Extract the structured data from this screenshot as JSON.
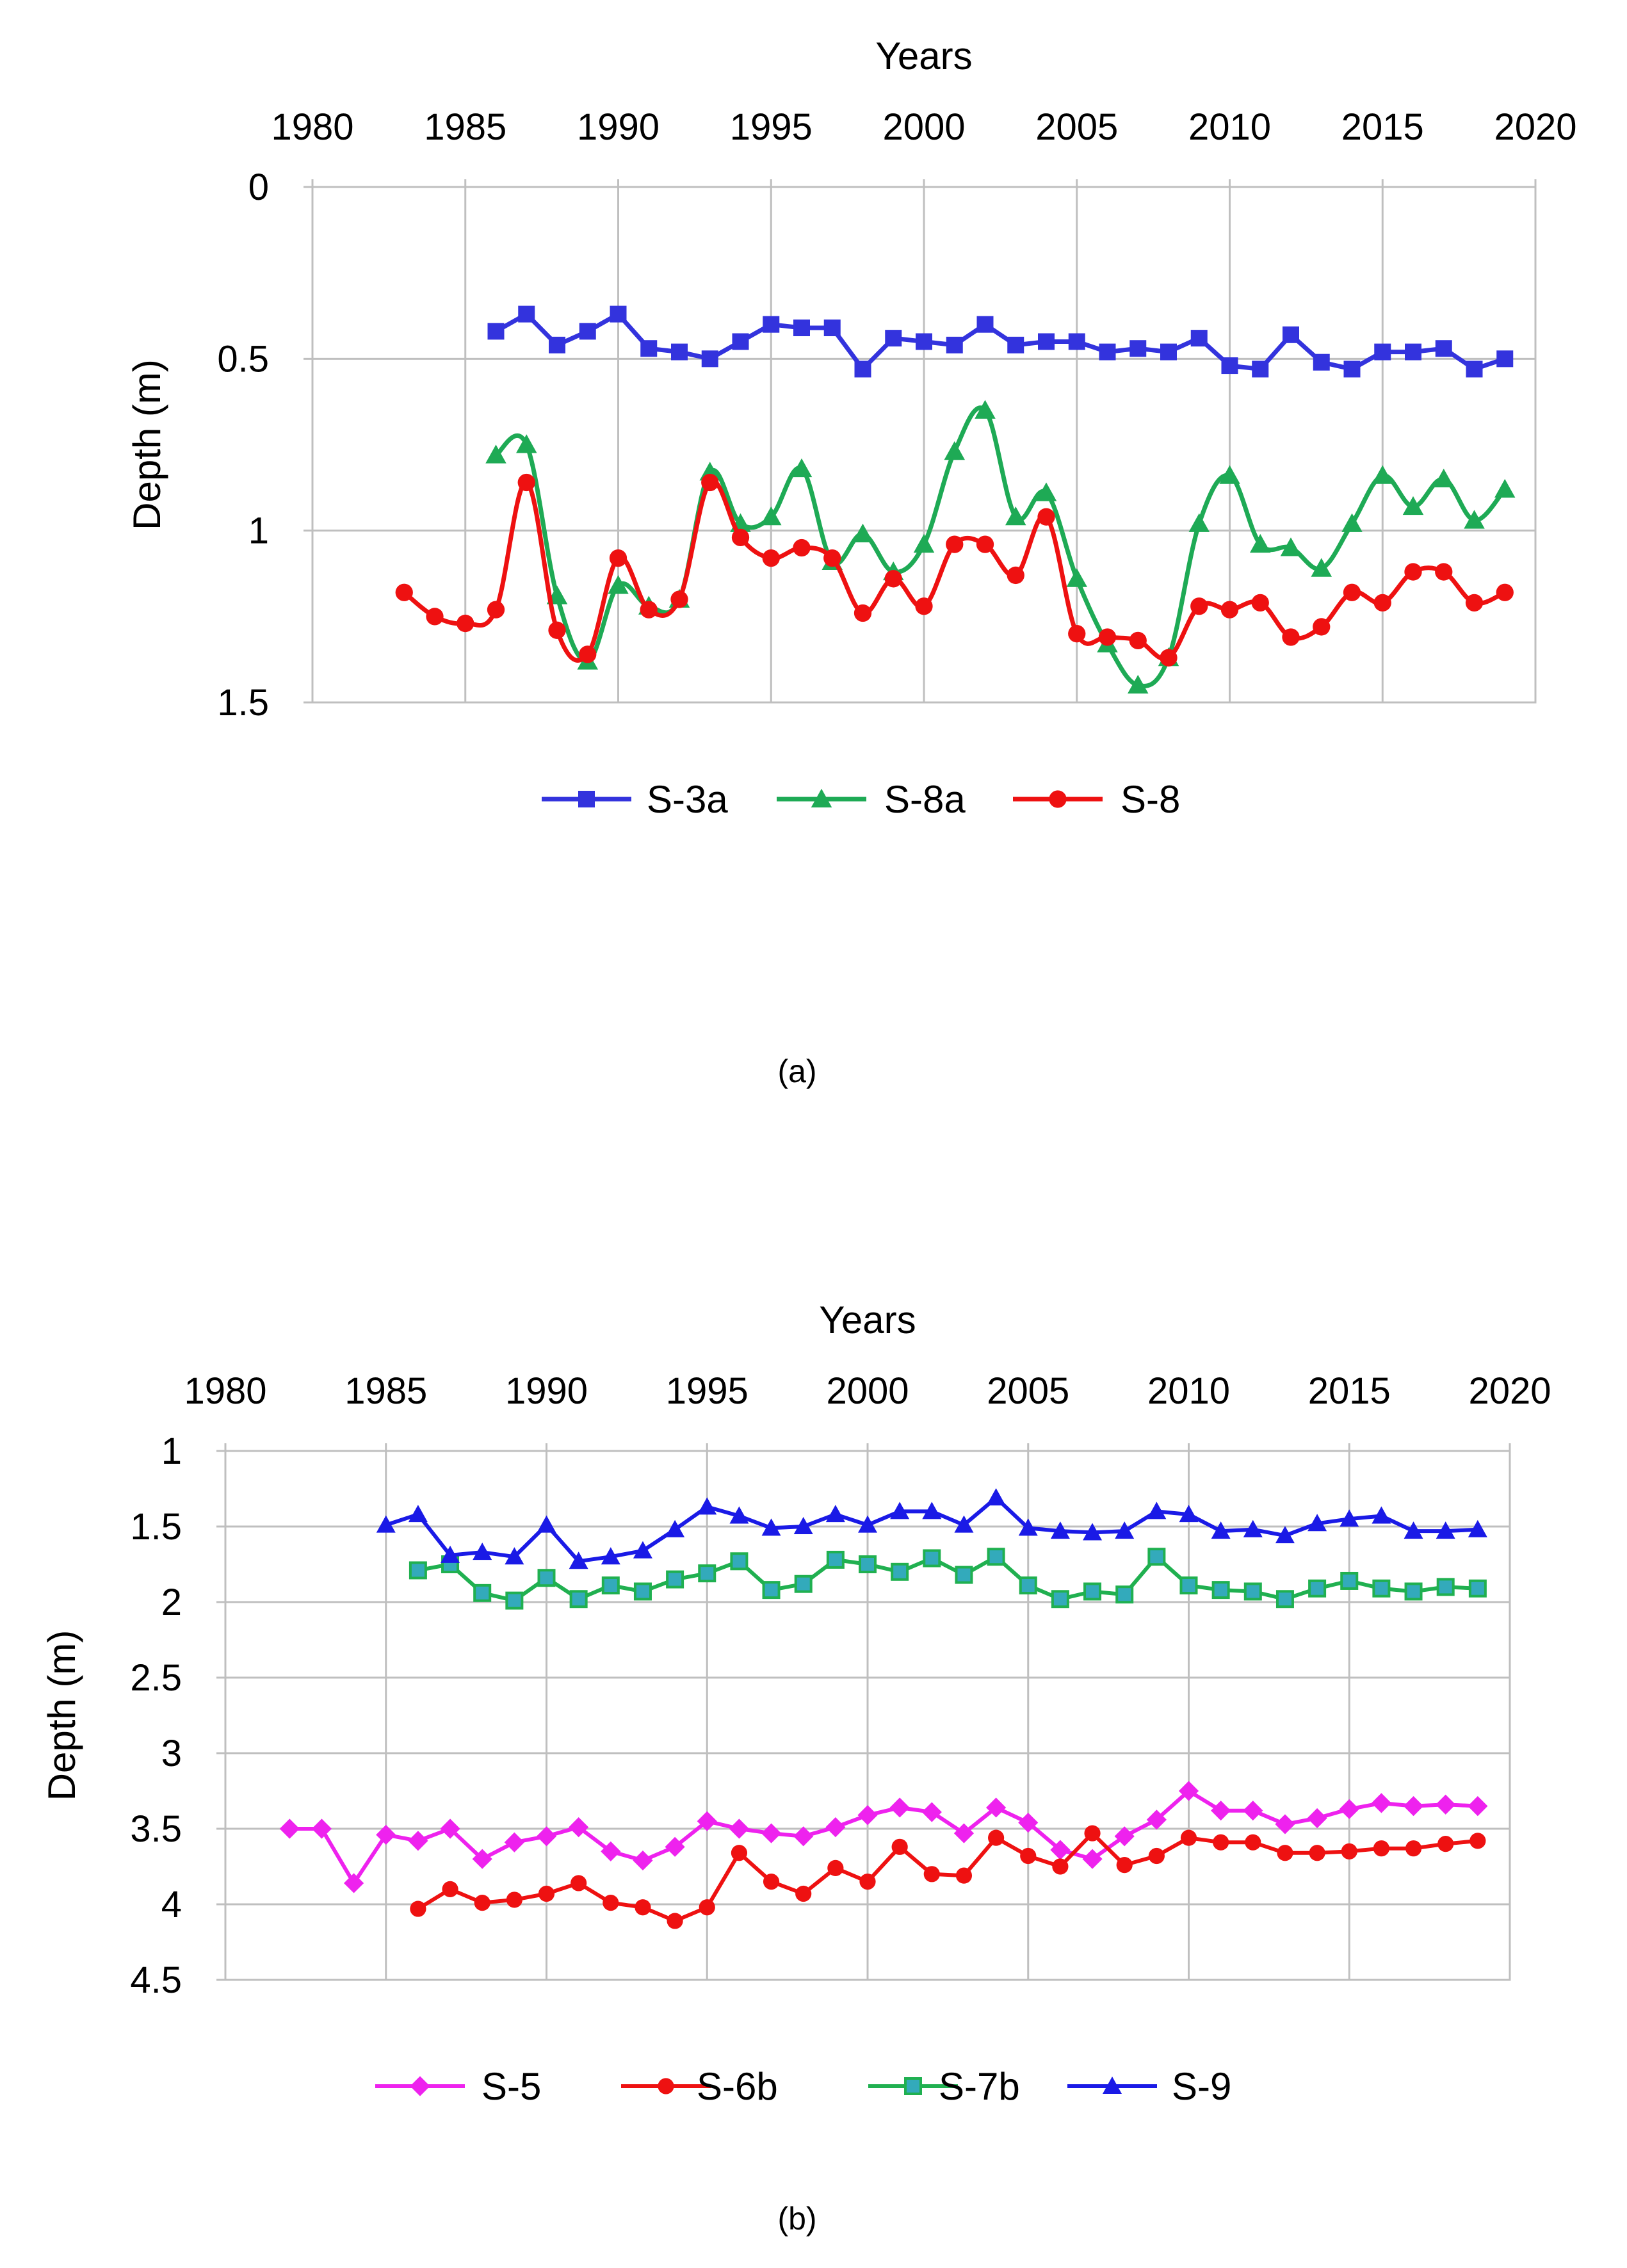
{
  "figure": {
    "caption_a": "(a)",
    "caption_b": "(b)"
  },
  "chart_data": [
    {
      "id": "a",
      "type": "line",
      "title": "",
      "xlabel": "Years",
      "ylabel": "Depth (m)",
      "x_axis_position": "top",
      "y_inverted": true,
      "xlim": [
        1980,
        2020
      ],
      "ylim": [
        0,
        1.5
      ],
      "xticks": [
        1980,
        1985,
        1990,
        1995,
        2000,
        2005,
        2010,
        2015,
        2020
      ],
      "yticks": [
        0,
        0.5,
        1,
        1.5
      ],
      "ytick_labels": [
        "0",
        "0.5",
        "1",
        "1.5"
      ],
      "grid": true,
      "legend_position": "bottom",
      "series": [
        {
          "name": "S-3a",
          "color": "#3333DD",
          "marker": "square",
          "smooth": false,
          "x": [
            1986,
            1987,
            1988,
            1989,
            1990,
            1991,
            1992,
            1993,
            1994,
            1995,
            1996,
            1997,
            1998,
            1999,
            2000,
            2001,
            2002,
            2003,
            2004,
            2005,
            2006,
            2007,
            2008,
            2009,
            2010,
            2011,
            2012,
            2013,
            2014,
            2015,
            2016,
            2017,
            2018,
            2019
          ],
          "values": [
            0.42,
            0.37,
            0.46,
            0.42,
            0.37,
            0.47,
            0.48,
            0.5,
            0.45,
            0.4,
            0.41,
            0.41,
            0.53,
            0.44,
            0.45,
            0.46,
            0.4,
            0.46,
            0.45,
            0.45,
            0.48,
            0.47,
            0.48,
            0.44,
            0.52,
            0.53,
            0.43,
            0.51,
            0.53,
            0.48,
            0.48,
            0.47,
            0.53,
            0.5
          ]
        },
        {
          "name": "S-8a",
          "color": "#1EAA55",
          "marker": "triangle",
          "smooth": true,
          "x": [
            1986,
            1987,
            1988,
            1989,
            1990,
            1991,
            1992,
            1993,
            1994,
            1995,
            1996,
            1997,
            1998,
            1999,
            2000,
            2001,
            2002,
            2003,
            2004,
            2005,
            2006,
            2007,
            2008,
            2009,
            2010,
            2011,
            2012,
            2013,
            2014,
            2015,
            2016,
            2017,
            2018,
            2019
          ],
          "values": [
            0.78,
            0.75,
            1.19,
            1.38,
            1.16,
            1.22,
            1.2,
            0.83,
            0.98,
            0.96,
            0.82,
            1.09,
            1.01,
            1.12,
            1.04,
            0.77,
            0.65,
            0.96,
            0.89,
            1.14,
            1.33,
            1.45,
            1.37,
            0.98,
            0.84,
            1.04,
            1.05,
            1.11,
            0.98,
            0.84,
            0.93,
            0.85,
            0.97,
            0.88
          ]
        },
        {
          "name": "S-8",
          "color": "#EE1111",
          "marker": "circle",
          "smooth": true,
          "x": [
            1983,
            1984,
            1985,
            1986,
            1987,
            1988,
            1989,
            1990,
            1991,
            1992,
            1993,
            1994,
            1995,
            1996,
            1997,
            1998,
            1999,
            2000,
            2001,
            2002,
            2003,
            2004,
            2005,
            2006,
            2007,
            2008,
            2009,
            2010,
            2011,
            2012,
            2013,
            2014,
            2015,
            2016,
            2017,
            2018,
            2019
          ],
          "values": [
            1.18,
            1.25,
            1.27,
            1.23,
            0.86,
            1.29,
            1.36,
            1.08,
            1.23,
            1.2,
            0.86,
            1.02,
            1.08,
            1.05,
            1.08,
            1.24,
            1.14,
            1.22,
            1.04,
            1.04,
            1.13,
            0.96,
            1.3,
            1.31,
            1.32,
            1.37,
            1.22,
            1.23,
            1.21,
            1.31,
            1.28,
            1.18,
            1.21,
            1.12,
            1.12,
            1.21,
            1.18
          ]
        }
      ]
    },
    {
      "id": "b",
      "type": "line",
      "title": "",
      "xlabel": "Years",
      "ylabel": "Depth (m)",
      "x_axis_position": "top",
      "y_inverted": true,
      "xlim": [
        1980,
        2020
      ],
      "ylim": [
        1,
        4.5
      ],
      "xticks": [
        1980,
        1985,
        1990,
        1995,
        2000,
        2005,
        2010,
        2015,
        2020
      ],
      "yticks": [
        1,
        1.5,
        2,
        2.5,
        3,
        3.5,
        4,
        4.5
      ],
      "ytick_labels": [
        "1",
        "1.5",
        "2",
        "2.5",
        "3",
        "3.5",
        "4",
        "4.5"
      ],
      "grid": true,
      "legend_position": "bottom",
      "series": [
        {
          "name": "S-5",
          "color": "#EE22EE",
          "marker": "diamond",
          "smooth": false,
          "x": [
            1982,
            1983,
            1984,
            1985,
            1986,
            1987,
            1988,
            1989,
            1990,
            1991,
            1992,
            1993,
            1994,
            1995,
            1996,
            1997,
            1998,
            1999,
            2000,
            2001,
            2002,
            2003,
            2004,
            2005,
            2006,
            2007,
            2008,
            2009,
            2010,
            2011,
            2012,
            2013,
            2014,
            2015,
            2016,
            2017,
            2018,
            2019
          ],
          "values": [
            3.5,
            3.5,
            3.86,
            3.54,
            3.58,
            3.5,
            3.7,
            3.59,
            3.55,
            3.49,
            3.65,
            3.71,
            3.62,
            3.45,
            3.5,
            3.53,
            3.55,
            3.49,
            3.41,
            3.36,
            3.39,
            3.53,
            3.36,
            3.46,
            3.64,
            3.7,
            3.55,
            3.44,
            3.25,
            3.38,
            3.38,
            3.47,
            3.43,
            3.37,
            3.33,
            3.35,
            3.34,
            3.35
          ]
        },
        {
          "name": "S-6b",
          "color": "#EE1111",
          "marker": "circle",
          "smooth": false,
          "x": [
            1986,
            1987,
            1988,
            1989,
            1990,
            1991,
            1992,
            1993,
            1994,
            1995,
            1996,
            1997,
            1998,
            1999,
            2000,
            2001,
            2002,
            2003,
            2004,
            2005,
            2006,
            2007,
            2008,
            2009,
            2010,
            2011,
            2012,
            2013,
            2014,
            2015,
            2016,
            2017,
            2018,
            2019
          ],
          "values": [
            4.03,
            3.9,
            3.99,
            3.97,
            3.93,
            3.86,
            3.99,
            4.02,
            4.11,
            4.02,
            3.66,
            3.85,
            3.93,
            3.76,
            3.85,
            3.62,
            3.8,
            3.81,
            3.56,
            3.68,
            3.75,
            3.53,
            3.74,
            3.68,
            3.56,
            3.59,
            3.59,
            3.66,
            3.66,
            3.65,
            3.63,
            3.63,
            3.6,
            3.58
          ]
        },
        {
          "name": "S-7b",
          "color": "#20B050",
          "marker": "square",
          "smooth": false,
          "marker_fill": "#33AABB",
          "x": [
            1986,
            1987,
            1988,
            1989,
            1990,
            1991,
            1992,
            1993,
            1994,
            1995,
            1996,
            1997,
            1998,
            1999,
            2000,
            2001,
            2002,
            2003,
            2004,
            2005,
            2006,
            2007,
            2008,
            2009,
            2010,
            2011,
            2012,
            2013,
            2014,
            2015,
            2016,
            2017,
            2018,
            2019
          ],
          "values": [
            1.79,
            1.75,
            1.94,
            1.99,
            1.84,
            1.98,
            1.89,
            1.93,
            1.85,
            1.81,
            1.73,
            1.92,
            1.88,
            1.72,
            1.75,
            1.8,
            1.71,
            1.82,
            1.7,
            1.89,
            1.98,
            1.93,
            1.95,
            1.7,
            1.89,
            1.92,
            1.93,
            1.98,
            1.91,
            1.86,
            1.91,
            1.93,
            1.9,
            1.91
          ]
        },
        {
          "name": "S-9",
          "color": "#1A1AE6",
          "marker": "triangle",
          "smooth": false,
          "x": [
            1985,
            1986,
            1987,
            1988,
            1989,
            1990,
            1991,
            1992,
            1993,
            1994,
            1995,
            1996,
            1997,
            1998,
            1999,
            2000,
            2001,
            2002,
            2003,
            2004,
            2005,
            2006,
            2007,
            2008,
            2009,
            2010,
            2011,
            2012,
            2013,
            2014,
            2015,
            2016,
            2017,
            2018,
            2019
          ],
          "values": [
            1.49,
            1.42,
            1.69,
            1.67,
            1.7,
            1.49,
            1.73,
            1.7,
            1.66,
            1.52,
            1.37,
            1.43,
            1.51,
            1.5,
            1.42,
            1.49,
            1.4,
            1.4,
            1.49,
            1.31,
            1.51,
            1.53,
            1.54,
            1.53,
            1.4,
            1.42,
            1.53,
            1.52,
            1.56,
            1.48,
            1.45,
            1.43,
            1.53,
            1.53,
            1.52
          ]
        }
      ]
    }
  ]
}
